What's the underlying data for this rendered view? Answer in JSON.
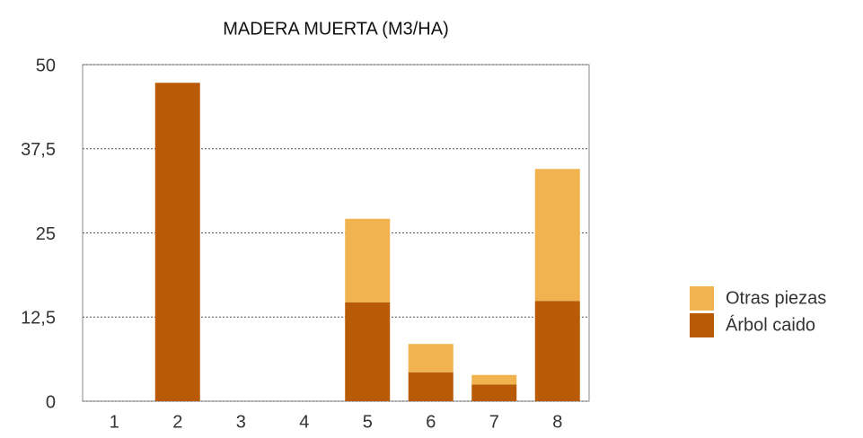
{
  "chart_data": {
    "type": "stacked_bar",
    "title": "MADERA MUERTA (M3/HA)",
    "categories": [
      "1",
      "2",
      "3",
      "4",
      "5",
      "6",
      "7",
      "8"
    ],
    "series": [
      {
        "name": "Árbol caido",
        "color": "#b95a06",
        "values": [
          0,
          47.3,
          0,
          0,
          14.7,
          4.3,
          2.5,
          14.9
        ]
      },
      {
        "name": "Otras piezas",
        "color": "#f0b34f",
        "values": [
          0,
          0,
          0,
          0,
          12.4,
          4.2,
          1.4,
          19.6
        ]
      }
    ],
    "ylim": [
      0,
      50
    ],
    "yticks": [
      0,
      {
        "value": 12.5,
        "label": "12,5"
      },
      25,
      {
        "value": 37.5,
        "label": "37,5"
      },
      50
    ],
    "grid": true,
    "legend": "right"
  }
}
